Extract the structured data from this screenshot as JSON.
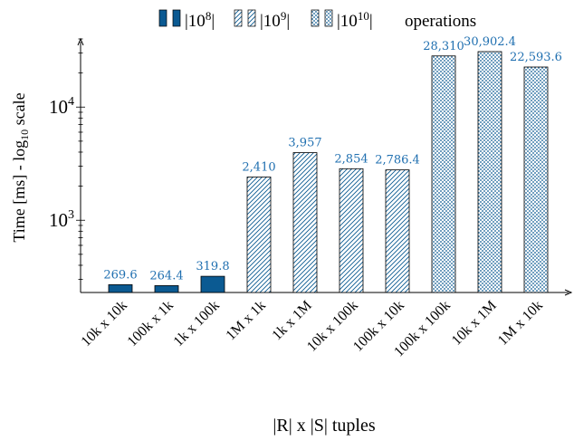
{
  "chart_data": {
    "type": "bar",
    "yscale": "log",
    "ylim": [
      230,
      40000
    ],
    "ylabel_main": "Time [ms] - log",
    "ylabel_sub": "10",
    "ylabel_tail": " scale",
    "xlabel": "|R| x |S| tuples",
    "y_tick_labels": [
      {
        "value": 1000,
        "base": "10",
        "exp": "3"
      },
      {
        "value": 10000,
        "base": "10",
        "exp": "4"
      }
    ],
    "legend": {
      "position": "top",
      "entries": [
        {
          "label_base": "|10",
          "label_exp": "8",
          "label_end": "|",
          "pattern": "solid"
        },
        {
          "label_base": "|10",
          "label_exp": "9",
          "label_end": "|",
          "pattern": "hatch"
        },
        {
          "label_base": "|10",
          "label_exp": "10",
          "label_end": "|",
          "pattern": "dots"
        }
      ],
      "suffix": "operations"
    },
    "categories": [
      "10k x 10k",
      "100k x 1k",
      "1k x 100k",
      "1M x 1k",
      "1k x 1M",
      "10k x 100k",
      "100k x 10k",
      "100k x 100k",
      "10k x 1M",
      "1M x 10k"
    ],
    "values": [
      269.6,
      264.4,
      319.8,
      2410,
      3957,
      2854,
      2786.4,
      28310,
      30902.4,
      22593.6
    ],
    "data_labels": [
      "269.6",
      "264.4",
      "319.8",
      "2,410",
      "3,957",
      "2,854",
      "2,786.4",
      "28,310",
      "30,902.4",
      "22,593.6"
    ],
    "patterns": [
      "solid",
      "solid",
      "solid",
      "hatch",
      "hatch",
      "hatch",
      "hatch",
      "dots",
      "dots",
      "dots"
    ],
    "colors": {
      "bar": "#0b5a92",
      "label": "#1f6fb0",
      "axis": "#000000"
    }
  }
}
